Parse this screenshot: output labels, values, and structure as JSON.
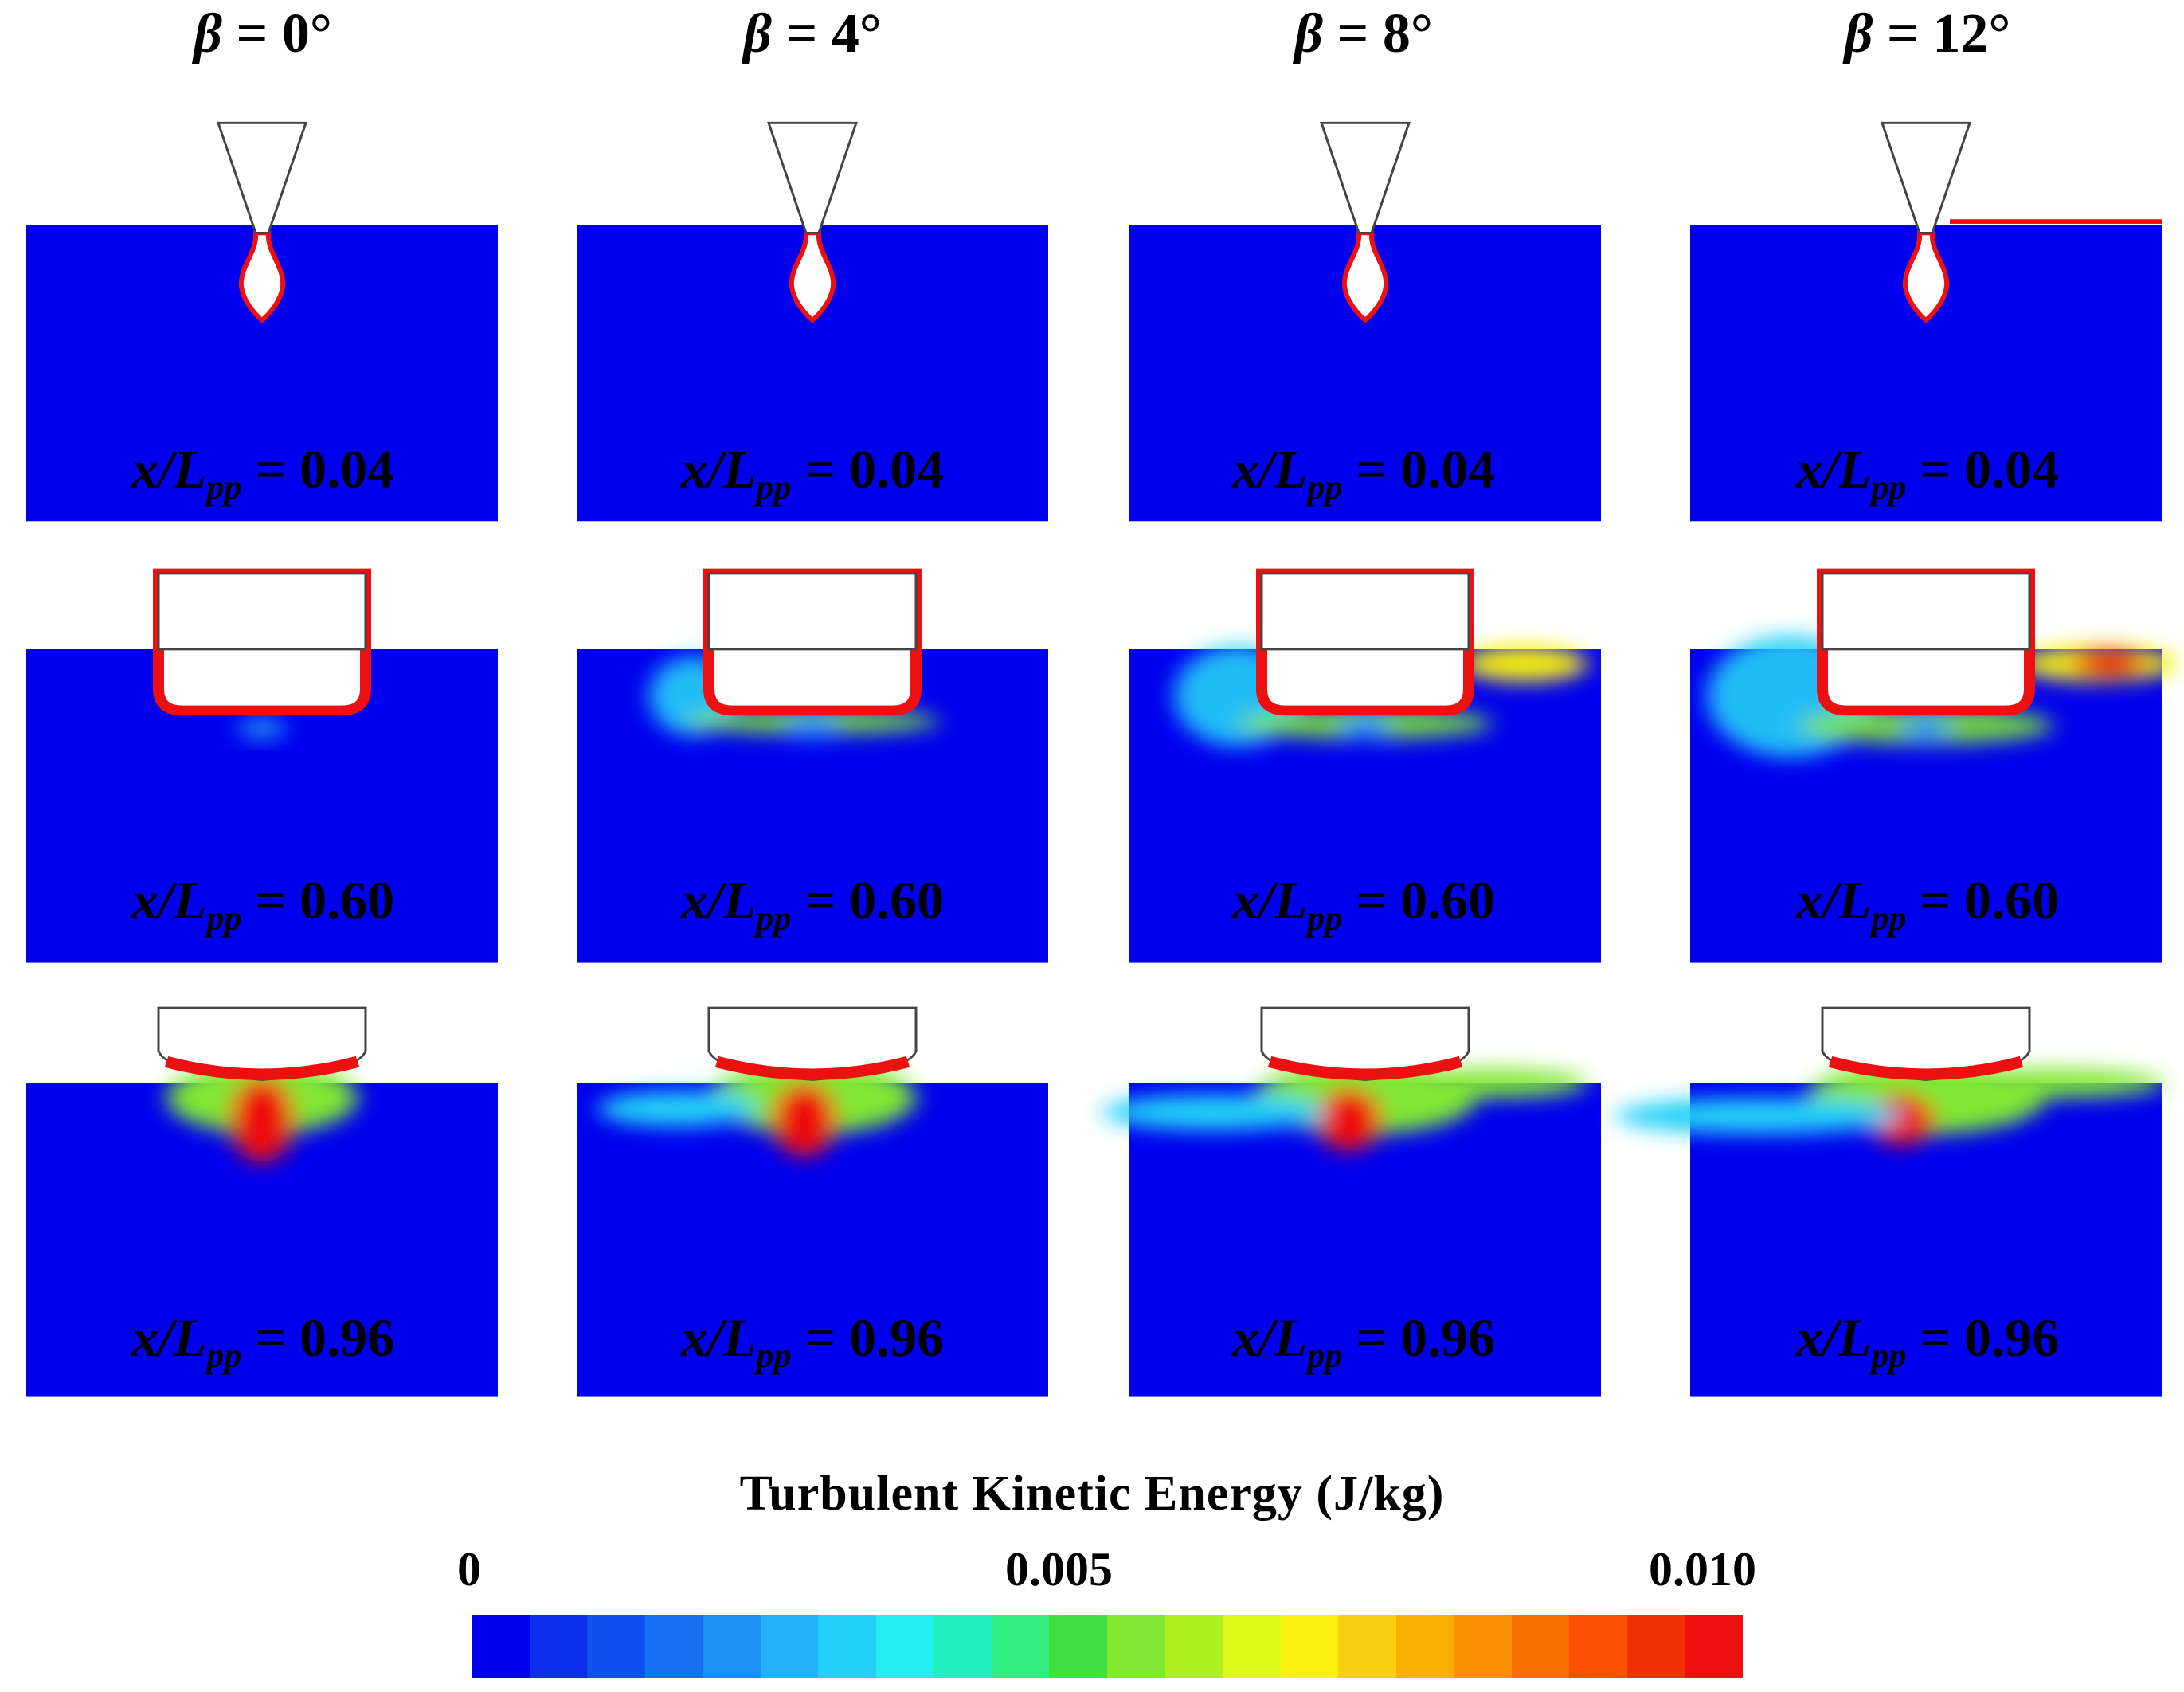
{
  "columns": [
    {
      "symbol": "β",
      "value": " = 0°"
    },
    {
      "symbol": "β",
      "value": " = 4°"
    },
    {
      "symbol": "β",
      "value": " = 8°"
    },
    {
      "symbol": "β",
      "value": " = 12°"
    }
  ],
  "rows": [
    {
      "section": "0.04",
      "label_var": "x/L",
      "label_sub": "pp",
      "label_eq": " = 0.04"
    },
    {
      "section": "0.60",
      "label_var": "x/L",
      "label_sub": "pp",
      "label_eq": " = 0.60"
    },
    {
      "section": "0.96",
      "label_var": "x/L",
      "label_sub": "pp",
      "label_eq": " = 0.96"
    }
  ],
  "colorbar": {
    "title": "Turbulent Kinetic Energy (J/kg)",
    "min_label": "0",
    "mid_label": "0.005",
    "max_label": "0.010",
    "range": [
      0,
      0.01
    ],
    "colors": [
      "#0000ee",
      "#0a30ee",
      "#1050f0",
      "#1670f2",
      "#1c90f4",
      "#22b0f6",
      "#22d0f8",
      "#20eef0",
      "#20f0c0",
      "#30ee80",
      "#40e040",
      "#80e830",
      "#b0f020",
      "#e0f818",
      "#f8f010",
      "#f8d010",
      "#f8b000",
      "#f89000",
      "#f87000",
      "#f85000",
      "#f03000",
      "#ee1010"
    ],
    "colors_count_note": ""
  },
  "palette": {
    "water": "#0000ee",
    "high": "#ee1010",
    "hull_outline": "#444444"
  }
}
